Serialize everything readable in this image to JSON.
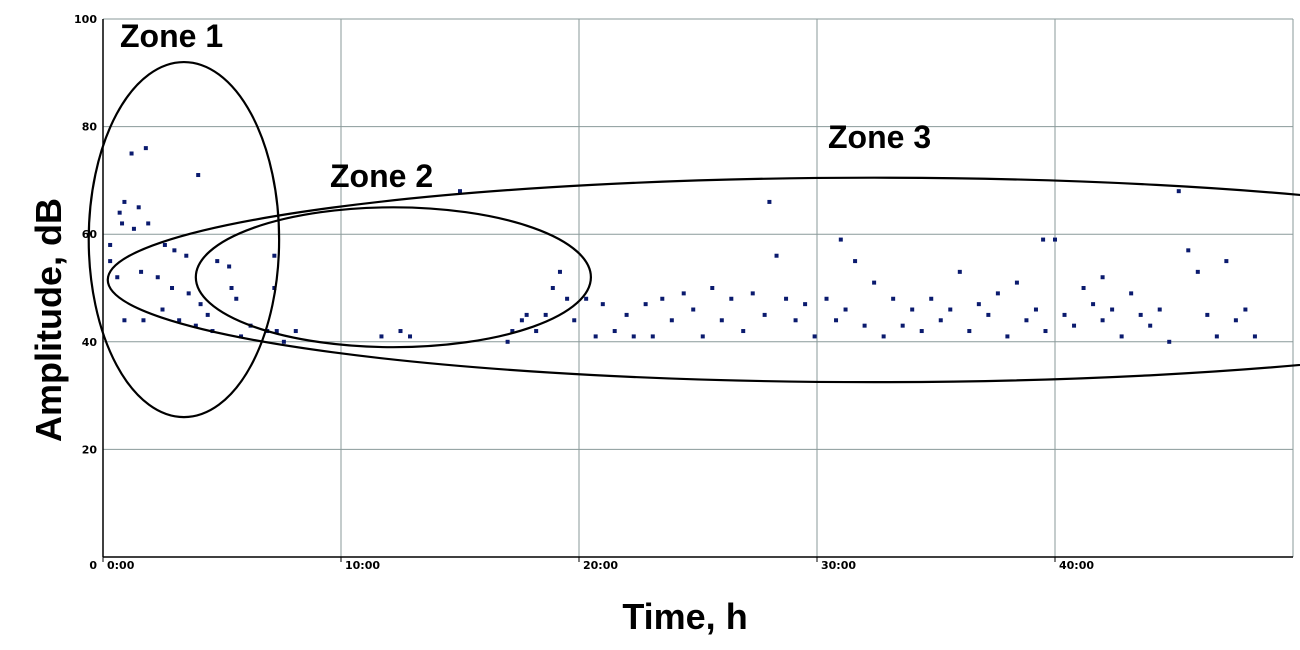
{
  "chart_data": {
    "type": "scatter",
    "xlabel": "Time, h",
    "ylabel": "Amplitude, dB",
    "xlim": [
      0,
      50
    ],
    "ylim": [
      0,
      100
    ],
    "x_ticks": [
      {
        "value": 0,
        "label": "0:00"
      },
      {
        "value": 10,
        "label": "10:00"
      },
      {
        "value": 20,
        "label": "20:00"
      },
      {
        "value": 30,
        "label": "30:00"
      },
      {
        "value": 40,
        "label": "40:00"
      }
    ],
    "x_origin_label": "0",
    "y_ticks": [
      {
        "value": 20,
        "label": "20"
      },
      {
        "value": 40,
        "label": "40"
      },
      {
        "value": 60,
        "label": "60"
      },
      {
        "value": 80,
        "label": "80"
      },
      {
        "value": 100,
        "label": "100"
      }
    ],
    "grid": true,
    "marker_color": "#0a1a6e",
    "grid_color": "#8a9a9a",
    "annotations": [
      {
        "label": "Zone 1",
        "center": [
          3.4,
          59
        ],
        "radius": [
          4.0,
          33
        ]
      },
      {
        "label": "Zone 2",
        "center": [
          12.2,
          52
        ],
        "radius": [
          8.3,
          13
        ]
      },
      {
        "label": "Zone 3",
        "center": [
          32.4,
          51.5
        ],
        "radius": [
          32.2,
          19
        ]
      }
    ],
    "points": [
      [
        1.2,
        75
      ],
      [
        1.8,
        76
      ],
      [
        4.0,
        71
      ],
      [
        1.5,
        65
      ],
      [
        0.9,
        66
      ],
      [
        0.7,
        64
      ],
      [
        0.8,
        62
      ],
      [
        1.3,
        61
      ],
      [
        1.9,
        62
      ],
      [
        2.6,
        58
      ],
      [
        3.0,
        57
      ],
      [
        3.5,
        56
      ],
      [
        4.8,
        55
      ],
      [
        5.3,
        54
      ],
      [
        7.2,
        56
      ],
      [
        7.2,
        50
      ],
      [
        0.3,
        58
      ],
      [
        0.3,
        55
      ],
      [
        0.6,
        52
      ],
      [
        1.6,
        53
      ],
      [
        2.3,
        52
      ],
      [
        2.9,
        50
      ],
      [
        3.6,
        49
      ],
      [
        4.1,
        47
      ],
      [
        4.4,
        45
      ],
      [
        5.4,
        50
      ],
      [
        5.6,
        48
      ],
      [
        6.2,
        43
      ],
      [
        5.8,
        41
      ],
      [
        6.9,
        42
      ],
      [
        7.3,
        42
      ],
      [
        7.6,
        40
      ],
      [
        8.1,
        42
      ],
      [
        0.9,
        44
      ],
      [
        1.7,
        44
      ],
      [
        2.5,
        46
      ],
      [
        3.2,
        44
      ],
      [
        3.9,
        43
      ],
      [
        4.6,
        42
      ],
      [
        11.7,
        41
      ],
      [
        12.5,
        42
      ],
      [
        12.9,
        41
      ],
      [
        15.0,
        68
      ],
      [
        17.0,
        40
      ],
      [
        17.2,
        42
      ],
      [
        17.6,
        44
      ],
      [
        17.8,
        45
      ],
      [
        18.2,
        42
      ],
      [
        18.6,
        45
      ],
      [
        18.9,
        50
      ],
      [
        19.2,
        53
      ],
      [
        19.5,
        48
      ],
      [
        19.8,
        44
      ],
      [
        20.3,
        48
      ],
      [
        20.7,
        41
      ],
      [
        21.0,
        47
      ],
      [
        21.5,
        42
      ],
      [
        22.0,
        45
      ],
      [
        22.3,
        41
      ],
      [
        22.8,
        47
      ],
      [
        23.1,
        41
      ],
      [
        23.5,
        48
      ],
      [
        23.9,
        44
      ],
      [
        24.4,
        49
      ],
      [
        24.8,
        46
      ],
      [
        25.2,
        41
      ],
      [
        25.6,
        50
      ],
      [
        26.0,
        44
      ],
      [
        26.4,
        48
      ],
      [
        26.9,
        42
      ],
      [
        27.3,
        49
      ],
      [
        27.8,
        45
      ],
      [
        28.3,
        56
      ],
      [
        28.7,
        48
      ],
      [
        29.1,
        44
      ],
      [
        29.5,
        47
      ],
      [
        29.9,
        41
      ],
      [
        30.4,
        48
      ],
      [
        30.8,
        44
      ],
      [
        31.2,
        46
      ],
      [
        31.6,
        55
      ],
      [
        32.0,
        43
      ],
      [
        32.4,
        51
      ],
      [
        32.8,
        41
      ],
      [
        33.2,
        48
      ],
      [
        33.6,
        43
      ],
      [
        34.0,
        46
      ],
      [
        34.4,
        42
      ],
      [
        34.8,
        48
      ],
      [
        35.2,
        44
      ],
      [
        35.6,
        46
      ],
      [
        36.0,
        53
      ],
      [
        36.4,
        42
      ],
      [
        36.8,
        47
      ],
      [
        37.2,
        45
      ],
      [
        37.6,
        49
      ],
      [
        38.0,
        41
      ],
      [
        38.4,
        51
      ],
      [
        38.8,
        44
      ],
      [
        39.2,
        46
      ],
      [
        39.6,
        42
      ],
      [
        40.0,
        59
      ],
      [
        40.4,
        45
      ],
      [
        40.8,
        43
      ],
      [
        41.2,
        50
      ],
      [
        41.6,
        47
      ],
      [
        42.0,
        44
      ],
      [
        42.4,
        46
      ],
      [
        42.8,
        41
      ],
      [
        43.2,
        49
      ],
      [
        43.6,
        45
      ],
      [
        44.0,
        43
      ],
      [
        44.4,
        46
      ],
      [
        44.8,
        40
      ],
      [
        45.2,
        68
      ],
      [
        45.6,
        57
      ],
      [
        46.0,
        53
      ],
      [
        46.4,
        45
      ],
      [
        46.8,
        41
      ],
      [
        47.2,
        55
      ],
      [
        47.6,
        44
      ],
      [
        48.0,
        46
      ],
      [
        48.4,
        41
      ],
      [
        28.0,
        66
      ],
      [
        31.0,
        59
      ],
      [
        39.5,
        59
      ],
      [
        42.0,
        52
      ]
    ]
  }
}
